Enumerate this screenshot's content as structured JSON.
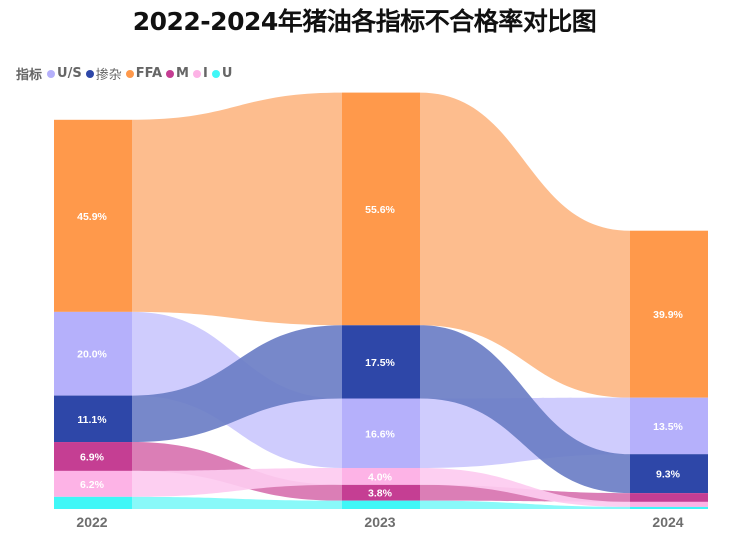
{
  "title": "2022-2024年猪油各指标不合格率对比图",
  "legend": {
    "title": "指标",
    "items": [
      {
        "name": "U/S",
        "color": "#b5b0fb",
        "flow_color": "#cbc8fd"
      },
      {
        "name": "掺杂",
        "color": "#2e47a8",
        "flow_color": "#6b7ec5"
      },
      {
        "name": "FFA",
        "color": "#ff994b",
        "flow_color": "#fdb784"
      },
      {
        "name": "M",
        "color": "#c53e93",
        "flow_color": "#d873b0"
      },
      {
        "name": "I",
        "color": "#fdb3e6",
        "flow_color": "#fdcbf0"
      },
      {
        "name": "U",
        "color": "#40f7f7",
        "flow_color": "#7ff9f9"
      }
    ]
  },
  "chart_data": {
    "type": "ribbon-stacked-bar",
    "title": "2022-2024年猪油各指标不合格率对比图",
    "categories": [
      "2022",
      "2023",
      "2024"
    ],
    "stack_order": "descending by value within each year",
    "series": [
      {
        "name": "FFA",
        "values": [
          45.9,
          55.6,
          39.9
        ],
        "labels": [
          "45.9%",
          "55.6%",
          "39.9%"
        ]
      },
      {
        "name": "U/S",
        "values": [
          20.0,
          16.6,
          13.5
        ],
        "labels": [
          "20.0%",
          "16.6%",
          "13.5%"
        ]
      },
      {
        "name": "掺杂",
        "values": [
          11.1,
          17.5,
          9.3
        ],
        "labels": [
          "11.1%",
          "17.5%",
          "9.3%"
        ]
      },
      {
        "name": "M",
        "values": [
          6.9,
          3.8,
          2.1
        ],
        "labels": [
          "6.9%",
          "3.8%",
          ""
        ]
      },
      {
        "name": "I",
        "values": [
          6.2,
          4.0,
          1.2
        ],
        "labels": [
          "6.2%",
          "4.0%",
          ""
        ]
      },
      {
        "name": "U",
        "values": [
          2.9,
          2.0,
          0.5
        ],
        "labels": [
          "",
          "",
          ""
        ]
      }
    ],
    "ylim": [
      0,
      100
    ],
    "grid": false,
    "legend_position": "top-left"
  }
}
